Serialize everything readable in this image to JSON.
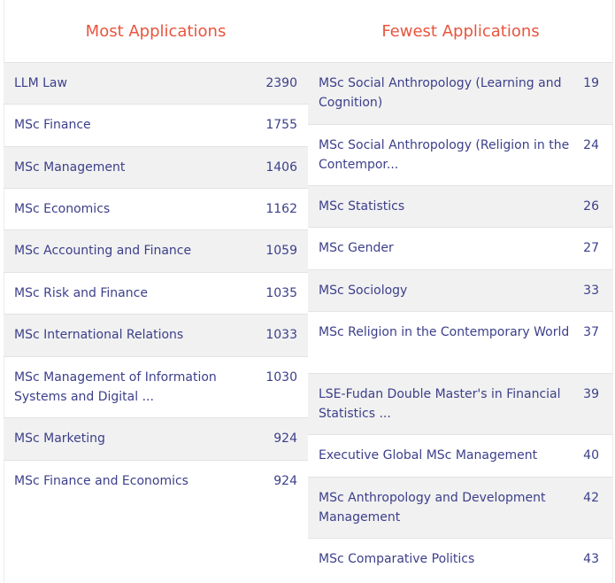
{
  "most": {
    "title": "Most Applications",
    "rows": [
      {
        "name": "LLM Law",
        "count": "2390"
      },
      {
        "name": "MSc Finance",
        "count": "1755"
      },
      {
        "name": "MSc Management",
        "count": "1406"
      },
      {
        "name": "MSc Economics",
        "count": "1162"
      },
      {
        "name": "MSc Accounting and Finance",
        "count": "1059"
      },
      {
        "name": "MSc Risk and Finance",
        "count": "1035"
      },
      {
        "name": "MSc International Relations",
        "count": "1033"
      },
      {
        "name": "MSc Management of Information Systems and Digital ...",
        "count": "1030"
      },
      {
        "name": "MSc Marketing",
        "count": "924"
      },
      {
        "name": "MSc Finance and Economics",
        "count": "924"
      }
    ]
  },
  "fewest": {
    "title": "Fewest Applications",
    "rows": [
      {
        "name": "MSc Social Anthropology (Learning and Cognition)",
        "count": "19"
      },
      {
        "name": "MSc Social Anthropology (Religion in the Contempor...",
        "count": "24"
      },
      {
        "name": "MSc Statistics",
        "count": "26"
      },
      {
        "name": "MSc Gender",
        "count": "27"
      },
      {
        "name": "MSc Sociology",
        "count": "33"
      },
      {
        "name": "MSc Religion in the Contemporary World",
        "count": "37"
      },
      {
        "name": "LSE-Fudan Double Master's in Financial Statistics ...",
        "count": "39"
      },
      {
        "name": "Executive Global MSc Management",
        "count": "40"
      },
      {
        "name": "MSc Anthropology and Development Management",
        "count": "42"
      },
      {
        "name": "MSc Comparative Politics",
        "count": "43"
      }
    ]
  },
  "colors": {
    "heading": "#e8553e",
    "text": "#3c3f8a",
    "row_shade": "#f1f1f1",
    "divider": "#e3e3e3"
  }
}
